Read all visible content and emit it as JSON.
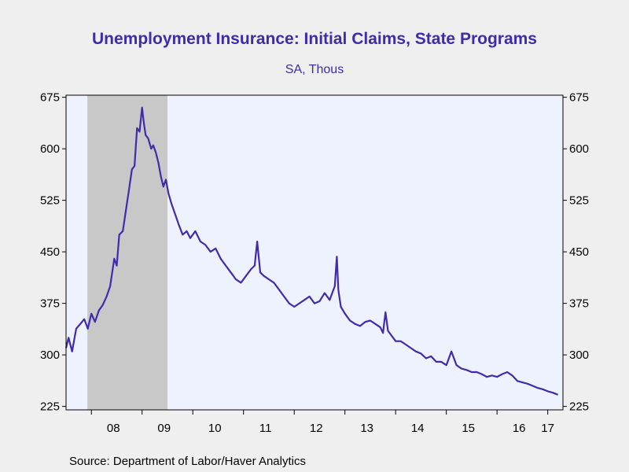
{
  "chart_data": {
    "type": "line",
    "title": "Unemployment Insurance: Initial Claims, State Programs",
    "subtitle": "SA, Thous",
    "source": "Source:  Department of Labor/Haver Analytics",
    "xlabel": "",
    "ylabel": "",
    "ylim": [
      220,
      678
    ],
    "xlim": [
      2007.5,
      2017.3
    ],
    "y_ticks": [
      225,
      300,
      375,
      450,
      525,
      600,
      675
    ],
    "y_tick_labels": [
      "225",
      "300",
      "375",
      "450",
      "525",
      "600",
      "675"
    ],
    "x_ticks": [
      2008,
      2009,
      2010,
      2011,
      2012,
      2013,
      2014,
      2015,
      2016,
      2017
    ],
    "x_tick_labels": [
      "08",
      "09",
      "10",
      "11",
      "12",
      "13",
      "14",
      "15",
      "16",
      "17"
    ],
    "recession": [
      2007.92,
      2009.5
    ],
    "grid": false,
    "legend": "none",
    "colors": {
      "series": "#3f2bab",
      "plot_background": "#eef2fe",
      "recession_shade": "#c8c8c8",
      "page_background": "#efefef"
    },
    "series": [
      {
        "x": [
          2007.5,
          2007.55,
          2007.62,
          2007.7,
          2007.78,
          2007.86,
          2007.93,
          2008.0,
          2008.07,
          2008.15,
          2008.22,
          2008.3,
          2008.37,
          2008.45,
          2008.5,
          2008.55,
          2008.62,
          2008.68,
          2008.74,
          2008.8,
          2008.85,
          2008.9,
          2008.95,
          2009.0,
          2009.03,
          2009.07,
          2009.12,
          2009.18,
          2009.22,
          2009.27,
          2009.32,
          2009.37,
          2009.42,
          2009.47,
          2009.52,
          2009.58,
          2009.65,
          2009.72,
          2009.8,
          2009.88,
          2009.95,
          2010.05,
          2010.15,
          2010.25,
          2010.35,
          2010.45,
          2010.55,
          2010.65,
          2010.75,
          2010.85,
          2010.95,
          2011.05,
          2011.15,
          2011.22,
          2011.27,
          2011.33,
          2011.4,
          2011.5,
          2011.6,
          2011.7,
          2011.8,
          2011.9,
          2012.0,
          2012.1,
          2012.2,
          2012.3,
          2012.4,
          2012.5,
          2012.6,
          2012.7,
          2012.8,
          2012.84,
          2012.87,
          2012.92,
          2013.0,
          2013.1,
          2013.2,
          2013.3,
          2013.4,
          2013.5,
          2013.6,
          2013.7,
          2013.75,
          2013.8,
          2013.85,
          2013.9,
          2014.0,
          2014.1,
          2014.2,
          2014.3,
          2014.4,
          2014.5,
          2014.6,
          2014.7,
          2014.8,
          2014.9,
          2015.0,
          2015.1,
          2015.2,
          2015.3,
          2015.4,
          2015.5,
          2015.6,
          2015.7,
          2015.8,
          2015.9,
          2016.0,
          2016.1,
          2016.2,
          2016.3,
          2016.4,
          2016.5,
          2016.6,
          2016.7,
          2016.8,
          2016.9,
          2017.0,
          2017.1,
          2017.2
        ],
        "values": [
          310,
          325,
          305,
          338,
          345,
          352,
          338,
          360,
          348,
          365,
          372,
          385,
          400,
          440,
          430,
          475,
          480,
          510,
          540,
          570,
          575,
          630,
          625,
          660,
          640,
          620,
          615,
          600,
          605,
          595,
          580,
          560,
          545,
          555,
          535,
          520,
          505,
          490,
          475,
          480,
          470,
          480,
          465,
          460,
          450,
          455,
          440,
          430,
          420,
          410,
          405,
          415,
          425,
          430,
          465,
          420,
          415,
          410,
          405,
          395,
          385,
          375,
          370,
          375,
          380,
          385,
          375,
          378,
          390,
          380,
          400,
          443,
          395,
          370,
          360,
          350,
          345,
          342,
          348,
          350,
          345,
          340,
          332,
          362,
          335,
          330,
          320,
          320,
          315,
          310,
          305,
          302,
          295,
          298,
          290,
          290,
          285,
          305,
          285,
          280,
          278,
          275,
          275,
          272,
          268,
          270,
          268,
          272,
          275,
          270,
          262,
          260,
          258,
          255,
          252,
          250,
          247,
          245,
          242
        ]
      }
    ]
  }
}
